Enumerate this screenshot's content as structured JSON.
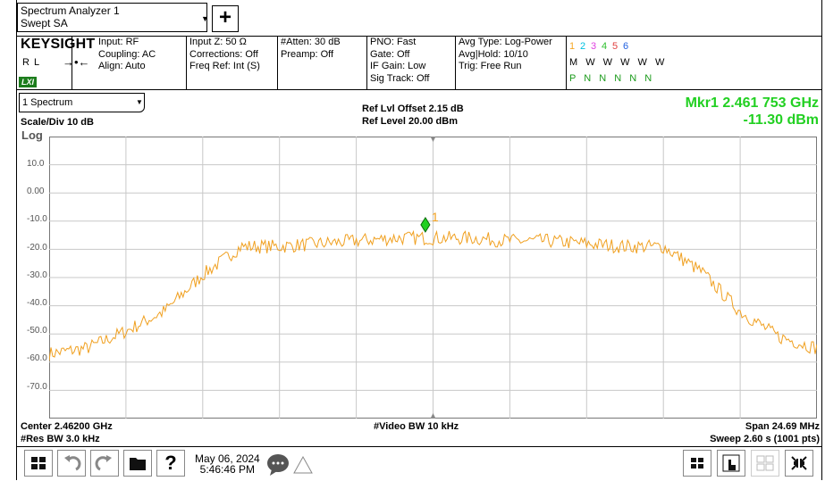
{
  "mode": {
    "line1": "Spectrum Analyzer 1",
    "line2": "Swept SA",
    "add_label": "+"
  },
  "header": {
    "brand": "KEYSIGHT",
    "ref_indicator": "R L",
    "lxi": "LXI",
    "col1": [
      "Input: RF",
      "Coupling: AC",
      "Align: Auto"
    ],
    "col2": [
      "Input Z: 50 Ω",
      "Corrections: Off",
      "Freq Ref: Int (S)"
    ],
    "col3": [
      "#Atten: 30 dB",
      "Preamp: Off"
    ],
    "col4": [
      "PNO: Fast",
      "Gate: Off",
      "IF Gain: Low",
      "Sig Track: Off"
    ],
    "col5": [
      "Avg Type: Log-Power",
      "Avg|Hold: 10/10",
      "Trig: Free Run"
    ],
    "trace_numbers": [
      "1",
      "2",
      "3",
      "4",
      "5",
      "6"
    ],
    "trace_colors": [
      "#f5a623",
      "#00c0e0",
      "#e040e0",
      "#30c030",
      "#e04040",
      "#2060e0"
    ],
    "trace_type_row": "M W W W W W",
    "trace_det_row": "P N N N N N"
  },
  "window": {
    "trace_select": "1 Spectrum",
    "ref_offset": "Ref Lvl Offset 2.15 dB",
    "ref_level": "Ref Level 20.00 dBm",
    "scale": "Scale/Div 10 dB",
    "log": "Log",
    "marker_freq": "Mkr1  2.461 753 GHz",
    "marker_amp": "-11.30 dBm",
    "marker_label": "1"
  },
  "y_ticks": [
    "10.0",
    "0.00",
    "-10.0",
    "-20.0",
    "-30.0",
    "-40.0",
    "-50.0",
    "-60.0",
    "-70.0"
  ],
  "footer": {
    "center": "Center 2.46200 GHz",
    "res_bw": "#Res BW 3.0 kHz",
    "video_bw": "#Video BW 10 kHz",
    "span": "Span 24.69 MHz",
    "sweep": "Sweep 2.60 s (1001 pts)"
  },
  "taskbar": {
    "date": "May 06, 2024",
    "time": "5:46:46 PM",
    "help": "?"
  },
  "colors": {
    "trace": "#f0a020",
    "marker": "#22d022",
    "grid": "#c8c8c8"
  },
  "chart_data": {
    "type": "line",
    "x_unit": "GHz",
    "y_unit": "dBm",
    "xlim": [
      2.449655,
      2.474345
    ],
    "ylim": [
      -80,
      20
    ],
    "x": [
      2.44966,
      2.45089,
      2.45213,
      2.45336,
      2.4546,
      2.45583,
      2.45706,
      2.4583,
      2.45953,
      2.46077,
      2.462,
      2.46323,
      2.46447,
      2.4657,
      2.46694,
      2.46817,
      2.4694,
      2.47064,
      2.47187,
      2.47311,
      2.47434
    ],
    "values": [
      -57,
      -55,
      -49,
      -42,
      -29,
      -19,
      -19,
      -18,
      -17,
      -16,
      -16,
      -16,
      -17,
      -17,
      -18,
      -19,
      -19,
      -28,
      -42,
      -51,
      -55
    ],
    "marker": {
      "x": 2.461753,
      "y": -11.3
    }
  }
}
